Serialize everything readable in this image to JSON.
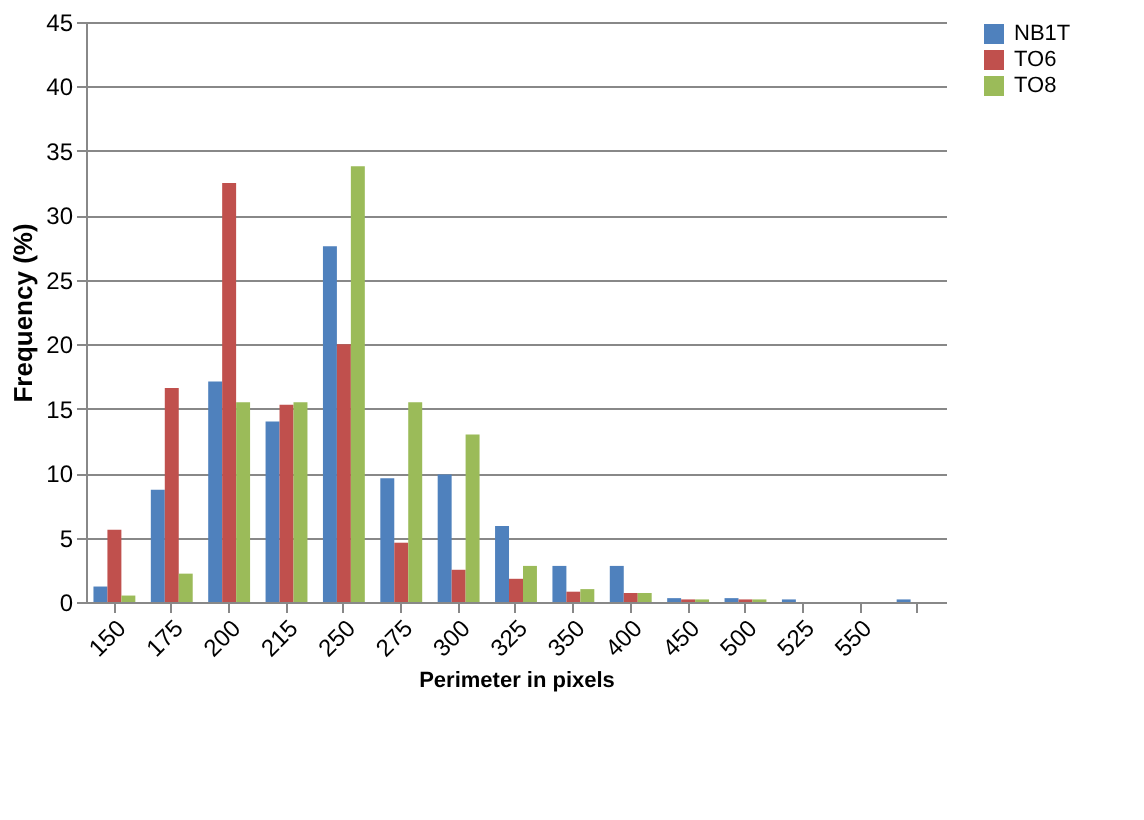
{
  "chart_data": {
    "type": "bar",
    "xlabel": "Perimeter in pixels",
    "ylabel": "Frequency (%)",
    "categories": [
      "150",
      "175",
      "200",
      "215",
      "250",
      "275",
      "300",
      "325",
      "350",
      "400",
      "450",
      "500",
      "525",
      "550",
      null
    ],
    "series": [
      {
        "name": "NB1T",
        "color": "#4f81bd",
        "values": [
          1.2,
          8.7,
          17.1,
          14.0,
          27.6,
          9.6,
          9.9,
          5.9,
          2.8,
          2.8,
          0.3,
          0.3,
          0.2,
          0,
          0.2
        ]
      },
      {
        "name": "TO6",
        "color": "#c0504d",
        "values": [
          5.6,
          16.6,
          32.5,
          15.3,
          20.0,
          4.6,
          2.5,
          1.8,
          0.8,
          0.7,
          0.2,
          0.2,
          0,
          0,
          0
        ]
      },
      {
        "name": "TO8",
        "color": "#9bbb59",
        "values": [
          0.5,
          2.2,
          15.5,
          15.5,
          33.8,
          15.5,
          13.0,
          2.8,
          1.0,
          0.7,
          0.2,
          0.2,
          0,
          0,
          0
        ]
      }
    ],
    "ylim": [
      0,
      45
    ],
    "yticks": [
      0,
      5,
      10,
      15,
      20,
      25,
      30,
      35,
      40,
      45
    ],
    "grid": "y",
    "legend": "right"
  }
}
